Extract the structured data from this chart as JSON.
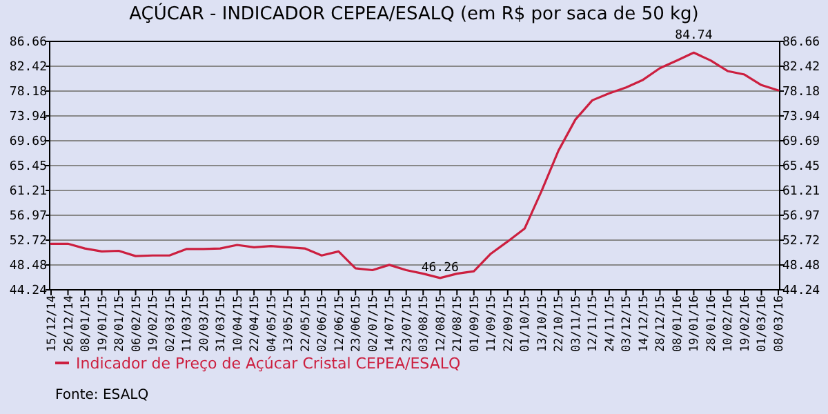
{
  "chart_data": {
    "type": "line",
    "title": "AÇÚCAR - INDICADOR CEPEA/ESALQ (em R$ por saca de 50 kg)",
    "categories": [
      "15/12/14",
      "26/12/14",
      "08/01/15",
      "19/01/15",
      "28/01/15",
      "06/02/15",
      "19/02/15",
      "02/03/15",
      "11/03/15",
      "20/03/15",
      "31/03/15",
      "10/04/15",
      "22/04/15",
      "04/05/15",
      "13/05/15",
      "22/05/15",
      "02/06/15",
      "12/06/15",
      "23/06/15",
      "02/07/15",
      "14/07/15",
      "23/07/15",
      "03/08/15",
      "12/08/15",
      "21/08/15",
      "01/09/15",
      "11/09/15",
      "22/09/15",
      "01/10/15",
      "13/10/15",
      "22/10/15",
      "03/11/15",
      "12/11/15",
      "24/11/15",
      "03/12/15",
      "14/12/15",
      "28/12/15",
      "08/01/16",
      "19/01/16",
      "28/01/16",
      "10/02/16",
      "19/02/16",
      "01/03/16",
      "08/03/16"
    ],
    "series": [
      {
        "name": "Indicador de Preço de Açúcar Cristal CEPEA/ESALQ",
        "color": "#cc1f3f",
        "values": [
          52.1,
          52.1,
          51.3,
          50.8,
          50.9,
          50.0,
          50.1,
          50.1,
          51.2,
          51.2,
          51.3,
          51.9,
          51.5,
          51.7,
          51.5,
          51.3,
          50.1,
          50.8,
          47.9,
          47.6,
          48.5,
          47.6,
          47.0,
          46.26,
          47.0,
          47.4,
          50.4,
          52.5,
          54.7,
          61.1,
          68.0,
          73.3,
          76.6,
          77.8,
          78.8,
          80.1,
          82.1,
          83.4,
          84.74,
          83.4,
          81.6,
          81.0,
          79.2,
          78.3
        ]
      }
    ],
    "ylim": [
      44.24,
      86.66
    ],
    "yticks": [
      44.24,
      48.48,
      52.72,
      56.97,
      61.21,
      65.45,
      69.69,
      73.94,
      78.18,
      82.42,
      86.66
    ],
    "y2lim": [
      44.24,
      86.66
    ],
    "y2ticks": [
      44.24,
      48.48,
      52.72,
      56.97,
      61.21,
      65.45,
      69.69,
      73.94,
      78.18,
      82.42,
      86.66
    ],
    "grid": "y",
    "legend": "bottom left",
    "marker": "none",
    "line_style": "solid",
    "annotations": [
      {
        "text": "46.26",
        "x": "12/08/15",
        "y": 46.26
      },
      {
        "text": "84.74",
        "x": "19/01/16",
        "y": 84.74
      },
      "Fonte: ESALQ"
    ]
  }
}
